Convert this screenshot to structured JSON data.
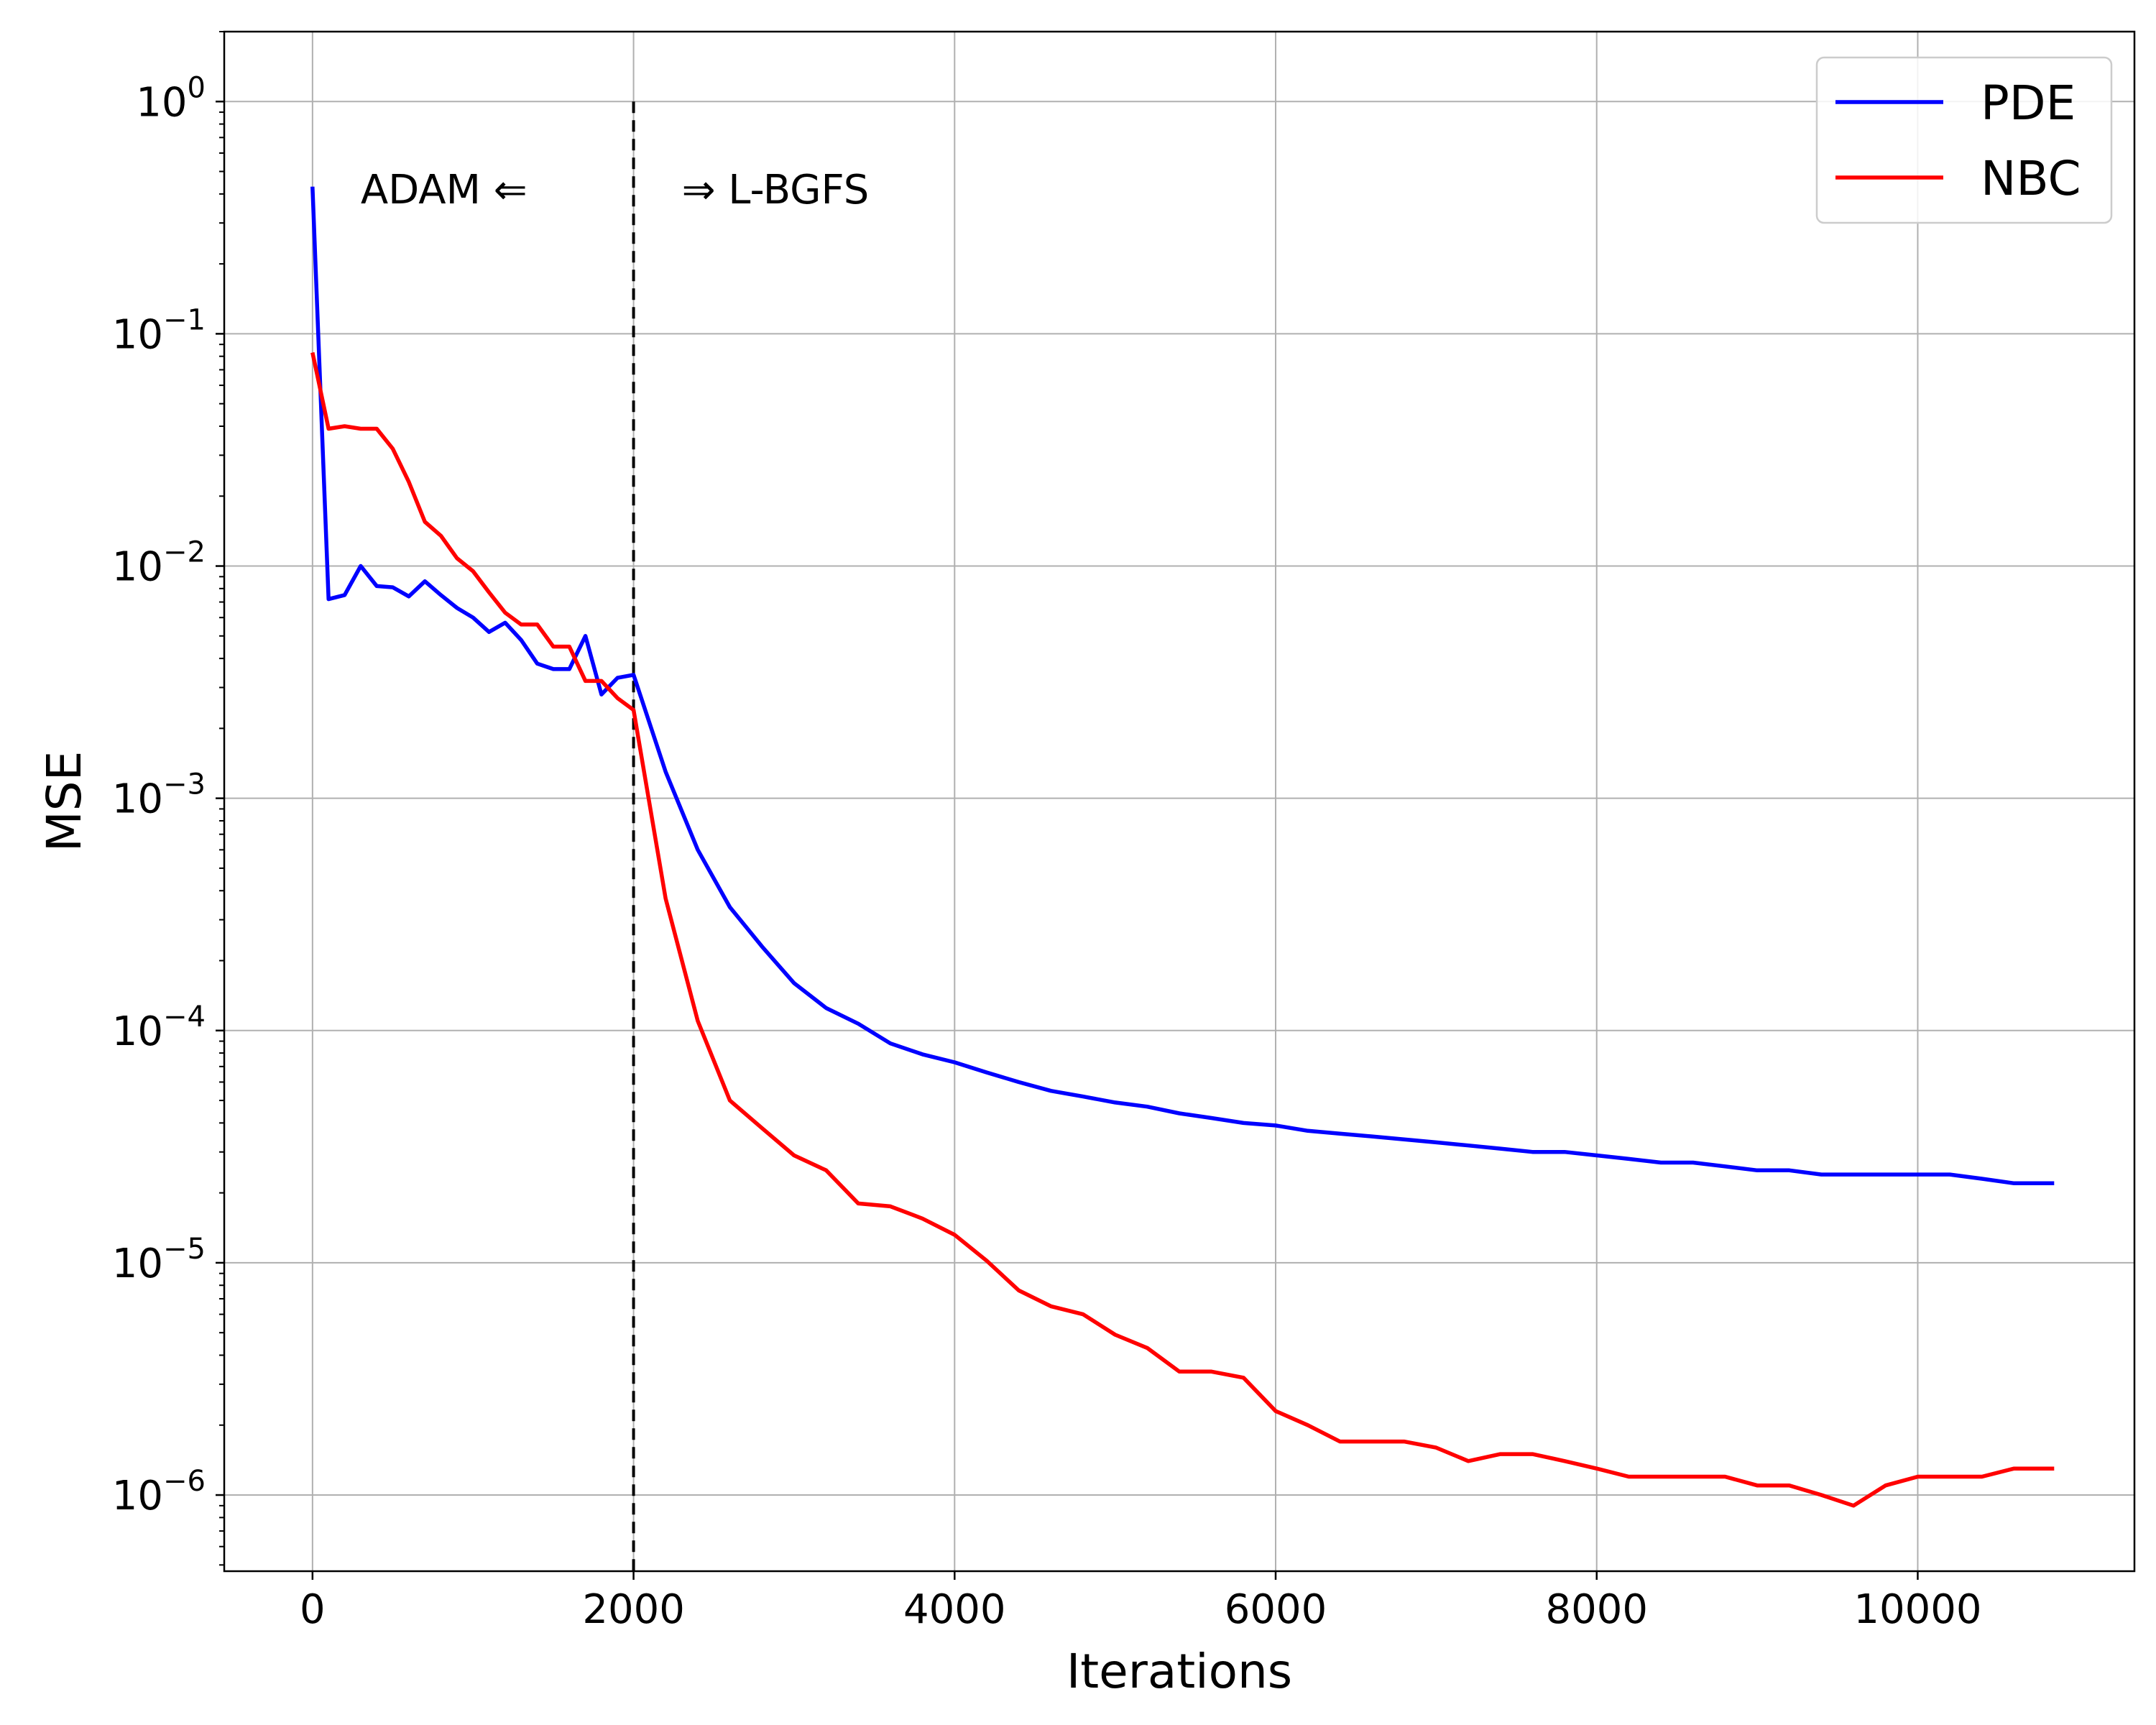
{
  "chart_data": {
    "type": "line",
    "title": "",
    "xlabel": "Iterations",
    "ylabel": "MSE",
    "xlim": [
      -550,
      11350
    ],
    "ylim": [
      4.7e-07,
      2.0
    ],
    "yscale": "log",
    "grid": true,
    "legend_position": "top-right",
    "xticks": [
      {
        "value": 0,
        "label": "0"
      },
      {
        "value": 2000,
        "label": "2000"
      },
      {
        "value": 4000,
        "label": "4000"
      },
      {
        "value": 6000,
        "label": "6000"
      },
      {
        "value": 8000,
        "label": "8000"
      },
      {
        "value": 10000,
        "label": "10000"
      }
    ],
    "yticks": [
      {
        "value": 1,
        "base": "10",
        "exp": "0"
      },
      {
        "value": 0.1,
        "base": "10",
        "exp": "−1"
      },
      {
        "value": 0.01,
        "base": "10",
        "exp": "−2"
      },
      {
        "value": 0.001,
        "base": "10",
        "exp": "−3"
      },
      {
        "value": 0.0001,
        "base": "10",
        "exp": "−4"
      },
      {
        "value": 1e-05,
        "base": "10",
        "exp": "−5"
      },
      {
        "value": 1e-06,
        "base": "10",
        "exp": "−6"
      }
    ],
    "annotations": [
      {
        "text": "ADAM  ⇐",
        "x": 300,
        "y": 0.42
      },
      {
        "text": "⇒  L-BGFS",
        "x": 2300,
        "y": 0.42
      }
    ],
    "vline": {
      "x": 2000,
      "y_top": 1.0,
      "style": "dashed",
      "color": "#000000"
    },
    "series": [
      {
        "name": "PDE",
        "color": "#0000ff",
        "x": [
          0,
          100,
          200,
          300,
          400,
          500,
          600,
          700,
          800,
          900,
          1000,
          1100,
          1200,
          1300,
          1400,
          1500,
          1600,
          1700,
          1800,
          1900,
          2000,
          2200,
          2400,
          2600,
          2800,
          3000,
          3200,
          3400,
          3600,
          3800,
          4000,
          4200,
          4400,
          4600,
          4800,
          5000,
          5200,
          5400,
          5600,
          5800,
          6000,
          6200,
          6400,
          6600,
          6800,
          7000,
          7200,
          7400,
          7600,
          7800,
          8000,
          8200,
          8400,
          8600,
          8800,
          9000,
          9200,
          9400,
          9600,
          9800,
          10000,
          10200,
          10400,
          10600,
          10850
        ],
        "values": [
          0.43,
          0.0072,
          0.0075,
          0.01,
          0.0082,
          0.0081,
          0.0074,
          0.0086,
          0.0075,
          0.0066,
          0.006,
          0.0052,
          0.0057,
          0.0048,
          0.0038,
          0.0036,
          0.0036,
          0.005,
          0.0028,
          0.0033,
          0.0034,
          0.0013,
          0.0006,
          0.00034,
          0.00023,
          0.00016,
          0.000125,
          0.000107,
          8.8e-05,
          7.9e-05,
          7.3e-05,
          6.6e-05,
          6e-05,
          5.5e-05,
          5.2e-05,
          4.9e-05,
          4.7e-05,
          4.4e-05,
          4.2e-05,
          4e-05,
          3.9e-05,
          3.7e-05,
          3.6e-05,
          3.5e-05,
          3.4e-05,
          3.3e-05,
          3.2e-05,
          3.1e-05,
          3e-05,
          3e-05,
          2.9e-05,
          2.8e-05,
          2.7e-05,
          2.7e-05,
          2.6e-05,
          2.5e-05,
          2.5e-05,
          2.4e-05,
          2.4e-05,
          2.4e-05,
          2.4e-05,
          2.4e-05,
          2.3e-05,
          2.2e-05,
          2.2e-05
        ]
      },
      {
        "name": "NBC",
        "color": "#ff0000",
        "x": [
          0,
          100,
          200,
          300,
          400,
          500,
          600,
          700,
          800,
          900,
          1000,
          1100,
          1200,
          1300,
          1400,
          1500,
          1600,
          1700,
          1800,
          1900,
          2000,
          2200,
          2400,
          2600,
          2800,
          3000,
          3200,
          3400,
          3600,
          3800,
          4000,
          4200,
          4400,
          4600,
          4800,
          5000,
          5200,
          5400,
          5600,
          5800,
          6000,
          6200,
          6400,
          6600,
          6800,
          7000,
          7200,
          7400,
          7600,
          7800,
          8000,
          8200,
          8400,
          8600,
          8800,
          9000,
          9200,
          9400,
          9600,
          9800,
          10000,
          10200,
          10400,
          10600,
          10850
        ],
        "values": [
          0.083,
          0.039,
          0.04,
          0.039,
          0.039,
          0.032,
          0.023,
          0.0155,
          0.0135,
          0.0108,
          0.0095,
          0.0077,
          0.0063,
          0.0056,
          0.0056,
          0.0045,
          0.0045,
          0.0032,
          0.0032,
          0.0027,
          0.0024,
          0.00037,
          0.00011,
          5e-05,
          3.8e-05,
          2.9e-05,
          2.5e-05,
          1.8e-05,
          1.75e-05,
          1.55e-05,
          1.32e-05,
          1.02e-05,
          7.6e-06,
          6.5e-06,
          6e-06,
          4.9e-06,
          4.3e-06,
          3.4e-06,
          3.4e-06,
          3.2e-06,
          2.3e-06,
          2e-06,
          1.7e-06,
          1.7e-06,
          1.7e-06,
          1.6e-06,
          1.4e-06,
          1.5e-06,
          1.5e-06,
          1.4e-06,
          1.3e-06,
          1.2e-06,
          1.2e-06,
          1.2e-06,
          1.2e-06,
          1.1e-06,
          1.1e-06,
          1e-06,
          9e-07,
          1.1e-06,
          1.2e-06,
          1.2e-06,
          1.2e-06,
          1.3e-06,
          1.3e-06
        ]
      }
    ]
  }
}
